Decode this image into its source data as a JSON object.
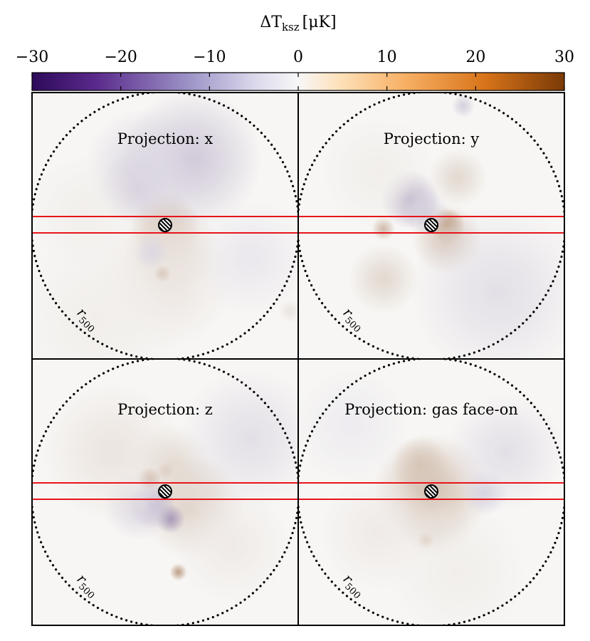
{
  "chart_data": {
    "type": "heatmap",
    "layout": "2x2 panel grid",
    "colorbar": {
      "label_main": "ΔT",
      "label_sub": "ksz",
      "label_unit": "[μK]",
      "vmin": -30,
      "vmax": 30,
      "ticks": [
        -30,
        -20,
        -10,
        0,
        10,
        20,
        30
      ],
      "tick_labels": [
        "−30",
        "−20",
        "−10",
        "0",
        "10",
        "20",
        "30"
      ],
      "colormap": "PuOr_r diverging (purple negative, white zero, orange positive)",
      "colors": {
        "neg": "#2d0a5a",
        "mid": "#f7f7f7",
        "pos": "#7a3a06"
      }
    },
    "circle_label_main": "r",
    "circle_label_sub": "500",
    "panels": [
      {
        "title": "Projection: x",
        "features": [
          {
            "u": 0.5,
            "v": 0.5,
            "s": 0.06,
            "amp": 9
          },
          {
            "u": 0.52,
            "v": 0.58,
            "s": 0.08,
            "amp": 5
          },
          {
            "u": 0.6,
            "v": 0.25,
            "s": 0.12,
            "amp": -6
          },
          {
            "u": 0.38,
            "v": 0.36,
            "s": 0.06,
            "amp": -6
          },
          {
            "u": 0.42,
            "v": 0.28,
            "s": 0.1,
            "amp": -4
          },
          {
            "u": 0.5,
            "v": 0.7,
            "s": 0.12,
            "amp": 3
          },
          {
            "u": 0.82,
            "v": 0.62,
            "s": 0.1,
            "amp": -2
          },
          {
            "u": 0.2,
            "v": 0.45,
            "s": 0.1,
            "amp": 1.5
          },
          {
            "u": 0.25,
            "v": 0.85,
            "s": 0.15,
            "amp": 1.5
          },
          {
            "u": 0.49,
            "v": 0.68,
            "s": 0.015,
            "amp": 7
          },
          {
            "u": 0.45,
            "v": 0.6,
            "s": 0.03,
            "amp": -4
          },
          {
            "u": 0.97,
            "v": 0.82,
            "s": 0.02,
            "amp": 3
          }
        ]
      },
      {
        "title": "Projection: y",
        "features": [
          {
            "u": 0.56,
            "v": 0.5,
            "s": 0.03,
            "amp": 20
          },
          {
            "u": 0.56,
            "v": 0.55,
            "s": 0.06,
            "amp": 8
          },
          {
            "u": 0.6,
            "v": 0.32,
            "s": 0.05,
            "amp": 5
          },
          {
            "u": 0.42,
            "v": 0.4,
            "s": 0.05,
            "amp": -10
          },
          {
            "u": 0.48,
            "v": 0.45,
            "s": 0.04,
            "amp": -5
          },
          {
            "u": 0.32,
            "v": 0.51,
            "s": 0.02,
            "amp": 10
          },
          {
            "u": 0.32,
            "v": 0.7,
            "s": 0.06,
            "amp": 5
          },
          {
            "u": 0.75,
            "v": 0.75,
            "s": 0.15,
            "amp": -3
          },
          {
            "u": 0.3,
            "v": 0.3,
            "s": 0.1,
            "amp": 1.5
          },
          {
            "u": 0.62,
            "v": 0.05,
            "s": 0.02,
            "amp": -5
          }
        ]
      },
      {
        "title": "Projection: z",
        "features": [
          {
            "u": 0.6,
            "v": 0.55,
            "s": 0.09,
            "amp": 6
          },
          {
            "u": 0.62,
            "v": 0.48,
            "s": 0.05,
            "amp": 4
          },
          {
            "u": 0.52,
            "v": 0.4,
            "s": 0.07,
            "amp": 5
          },
          {
            "u": 0.44,
            "v": 0.45,
            "s": 0.02,
            "amp": 12
          },
          {
            "u": 0.5,
            "v": 0.42,
            "s": 0.015,
            "amp": 7
          },
          {
            "u": 0.45,
            "v": 0.55,
            "s": 0.04,
            "amp": -10
          },
          {
            "u": 0.52,
            "v": 0.6,
            "s": 0.025,
            "amp": -12
          },
          {
            "u": 0.4,
            "v": 0.55,
            "s": 0.06,
            "amp": -4
          },
          {
            "u": 0.55,
            "v": 0.8,
            "s": 0.015,
            "amp": 14
          },
          {
            "u": 0.3,
            "v": 0.35,
            "s": 0.12,
            "amp": 3
          },
          {
            "u": 0.82,
            "v": 0.3,
            "s": 0.12,
            "amp": -3
          },
          {
            "u": 0.75,
            "v": 0.7,
            "s": 0.1,
            "amp": 2
          }
        ]
      },
      {
        "title": "Projection: gas face-on",
        "features": [
          {
            "u": 0.5,
            "v": 0.5,
            "s": 0.1,
            "amp": 9
          },
          {
            "u": 0.46,
            "v": 0.4,
            "s": 0.05,
            "amp": 8
          },
          {
            "u": 0.52,
            "v": 0.62,
            "s": 0.06,
            "amp": 5
          },
          {
            "u": 0.7,
            "v": 0.5,
            "s": 0.04,
            "amp": -5
          },
          {
            "u": 0.78,
            "v": 0.35,
            "s": 0.1,
            "amp": -3
          },
          {
            "u": 0.2,
            "v": 0.25,
            "s": 0.1,
            "amp": -1.5
          },
          {
            "u": 0.48,
            "v": 0.68,
            "s": 0.015,
            "amp": 9
          },
          {
            "u": 0.3,
            "v": 0.65,
            "s": 0.1,
            "amp": 2
          },
          {
            "u": 0.6,
            "v": 0.8,
            "s": 0.12,
            "amp": 1.5
          }
        ]
      }
    ]
  }
}
